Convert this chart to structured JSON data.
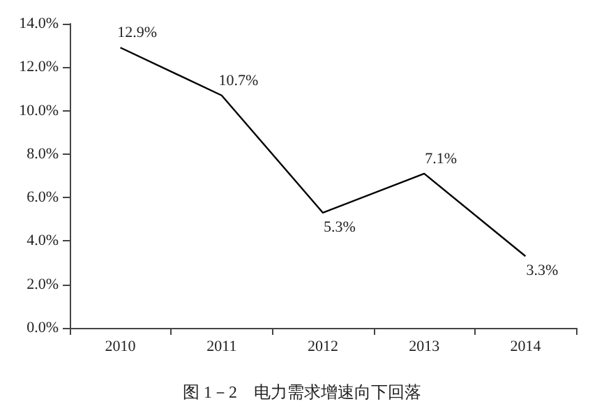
{
  "chart_data": {
    "type": "line",
    "title": "图 1－2　电力需求增速向下回落",
    "categories": [
      "2010",
      "2011",
      "2012",
      "2013",
      "2014"
    ],
    "values": [
      12.9,
      10.7,
      5.3,
      7.1,
      3.3
    ],
    "value_labels": [
      "12.9%",
      "10.7%",
      "5.3%",
      "7.1%",
      "3.3%"
    ],
    "color": "#000000",
    "ylim": [
      0,
      14
    ],
    "yticks": [
      {
        "value": 0,
        "label": "0.0%"
      },
      {
        "value": 2,
        "label": "2.0%"
      },
      {
        "value": 4,
        "label": "4.0%"
      },
      {
        "value": 6,
        "label": "6.0%"
      },
      {
        "value": 8,
        "label": "8.0%"
      },
      {
        "value": 10,
        "label": "10.0%"
      },
      {
        "value": 12,
        "label": "12.0%"
      },
      {
        "value": 14,
        "label": "14.0%"
      }
    ],
    "grid": false,
    "marker": "none",
    "line_style": "solid"
  }
}
